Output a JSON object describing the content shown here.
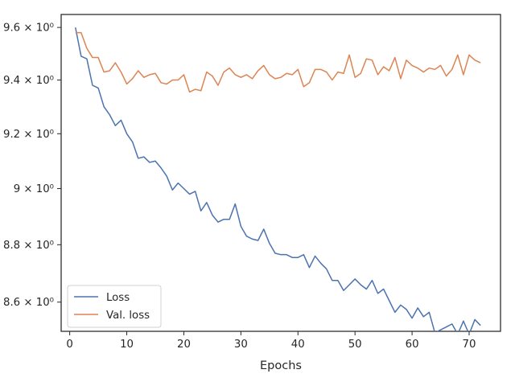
{
  "chart_data": {
    "type": "line",
    "xlabel": "Epochs",
    "ylabel": "",
    "yscale": "log",
    "xlim": [
      -1.5,
      75.5
    ],
    "ylim": [
      8.5,
      9.65
    ],
    "xticks": [
      0,
      10,
      20,
      30,
      40,
      50,
      60,
      70
    ],
    "yticks": [
      {
        "value": 8.6,
        "label": "8.6 × 10⁰"
      },
      {
        "value": 8.8,
        "label": "8.8 × 10⁰"
      },
      {
        "value": 9.0,
        "label": "9 × 10⁰"
      },
      {
        "value": 9.2,
        "label": "9.2 × 10⁰"
      },
      {
        "value": 9.4,
        "label": "9.4 × 10⁰"
      },
      {
        "value": 9.6,
        "label": "9.6 × 10⁰"
      }
    ],
    "grid": false,
    "legend_position": "lower-left",
    "x": [
      1,
      2,
      3,
      4,
      5,
      6,
      7,
      8,
      9,
      10,
      11,
      12,
      13,
      14,
      15,
      16,
      17,
      18,
      19,
      20,
      21,
      22,
      23,
      24,
      25,
      26,
      27,
      28,
      29,
      30,
      31,
      32,
      33,
      34,
      35,
      36,
      37,
      38,
      39,
      40,
      41,
      42,
      43,
      44,
      45,
      46,
      47,
      48,
      49,
      50,
      51,
      52,
      53,
      54,
      55,
      56,
      57,
      58,
      59,
      60,
      61,
      62,
      63,
      64,
      65,
      66,
      67,
      68,
      69,
      70,
      71,
      72
    ],
    "series": [
      {
        "name": "Loss",
        "color": "#4c72b0",
        "values": [
          9.6,
          9.49,
          9.48,
          9.38,
          9.37,
          9.3,
          9.27,
          9.23,
          9.25,
          9.2,
          9.17,
          9.11,
          9.115,
          9.095,
          9.1,
          9.075,
          9.045,
          8.995,
          9.02,
          9.0,
          8.98,
          8.99,
          8.92,
          8.95,
          8.905,
          8.88,
          8.89,
          8.89,
          8.945,
          8.865,
          8.83,
          8.82,
          8.815,
          8.855,
          8.805,
          8.77,
          8.765,
          8.765,
          8.755,
          8.755,
          8.765,
          8.72,
          8.76,
          8.735,
          8.715,
          8.675,
          8.675,
          8.64,
          8.66,
          8.68,
          8.66,
          8.645,
          8.675,
          8.63,
          8.645,
          8.605,
          8.565,
          8.59,
          8.575,
          8.545,
          8.58,
          8.55,
          8.565,
          8.495,
          8.505,
          8.515,
          8.525,
          8.49,
          8.535,
          8.49,
          8.54,
          8.52
        ]
      },
      {
        "name": "Val. loss",
        "color": "#dd8452",
        "values": [
          9.58,
          9.58,
          9.52,
          9.485,
          9.485,
          9.43,
          9.435,
          9.465,
          9.43,
          9.385,
          9.405,
          9.435,
          9.41,
          9.42,
          9.425,
          9.39,
          9.385,
          9.4,
          9.4,
          9.42,
          9.355,
          9.365,
          9.36,
          9.43,
          9.415,
          9.38,
          9.43,
          9.445,
          9.42,
          9.41,
          9.42,
          9.405,
          9.435,
          9.455,
          9.42,
          9.405,
          9.41,
          9.425,
          9.42,
          9.44,
          9.375,
          9.39,
          9.44,
          9.44,
          9.43,
          9.4,
          9.43,
          9.425,
          9.495,
          9.41,
          9.425,
          9.48,
          9.475,
          9.42,
          9.45,
          9.435,
          9.485,
          9.405,
          9.475,
          9.455,
          9.445,
          9.43,
          9.445,
          9.44,
          9.455,
          9.415,
          9.44,
          9.495,
          9.42,
          9.495,
          9.475,
          9.465
        ]
      }
    ]
  }
}
